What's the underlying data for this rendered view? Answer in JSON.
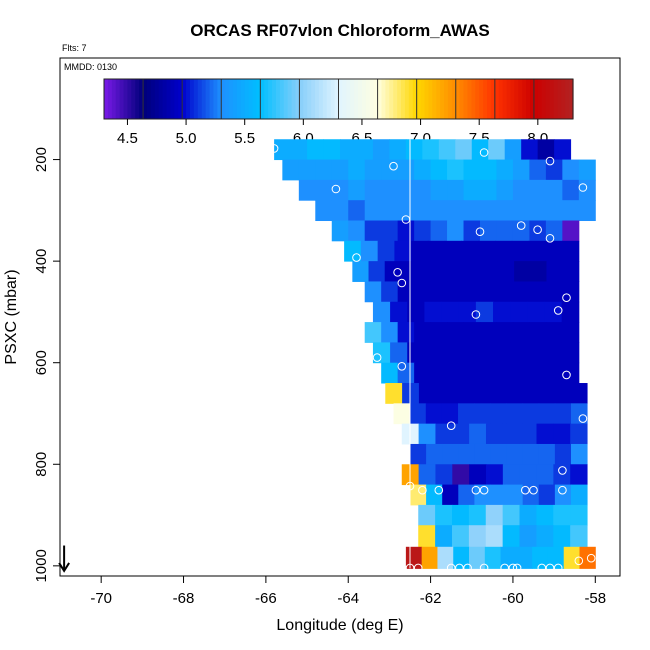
{
  "chart_data": {
    "type": "heatmap",
    "title": "ORCAS RF07vlon Chloroform_AWAS",
    "flts_label": "Flts: 7",
    "mmdd_label": "MMDD: 0130",
    "xlabel": "Longitude (deg E)",
    "ylabel": "PSXC (mbar)",
    "xlim": [
      -71.0,
      -57.4
    ],
    "ylim_top": 0,
    "ylim_bottom": 1020,
    "y_reversed": true,
    "x_ticks": [
      -70,
      -68,
      -66,
      -64,
      -62,
      -60,
      -58
    ],
    "x_tick_labels": [
      "-70",
      "-68",
      "-66",
      "-64",
      "-62",
      "-60",
      "-58"
    ],
    "y_ticks": [
      200,
      400,
      600,
      800,
      1000
    ],
    "y_tick_labels": [
      "200",
      "400",
      "600",
      "800",
      "1000"
    ],
    "colorbar": {
      "min": 4.3,
      "max": 8.3,
      "ticks": [
        4.5,
        5.0,
        5.5,
        6.0,
        6.5,
        7.0,
        7.5,
        8.0
      ],
      "tick_labels": [
        "4.5",
        "5.0",
        "5.5",
        "6.0",
        "6.5",
        "7.0",
        "7.5",
        "8.0"
      ],
      "colors": [
        "#7a1ae8",
        "#00007a",
        "#0000cc",
        "#1e90ff",
        "#00bfff",
        "#87cefa",
        "#e0f4ff",
        "#ffffe0",
        "#ffd700",
        "#ff8c00",
        "#ff3300",
        "#cc0000",
        "#b22222"
      ],
      "sections": 12
    },
    "heatmap_rows": [
      {
        "p": 180,
        "x0": -65.8,
        "x1": -58.6,
        "v": [
          5.5,
          5.5,
          5.6,
          5.6,
          5.5,
          5.5,
          5.4,
          5.5,
          5.6,
          5.7,
          5.8,
          5.9,
          5.6,
          5.9,
          5.4,
          5.0,
          4.8,
          5.0
        ]
      },
      {
        "p": 220,
        "x0": -65.6,
        "x1": -58.0,
        "v": [
          5.4,
          5.4,
          5.4,
          5.4,
          5.5,
          5.4,
          5.4,
          5.4,
          5.5,
          5.6,
          5.7,
          5.6,
          5.6,
          5.5,
          5.4,
          5.2,
          5.1,
          5.3,
          5.4
        ]
      },
      {
        "p": 260,
        "x0": -65.2,
        "x1": -58.0,
        "v": [
          5.3,
          5.3,
          5.3,
          5.4,
          5.3,
          5.3,
          5.3,
          5.3,
          5.4,
          5.4,
          5.5,
          5.5,
          5.4,
          5.3,
          5.3,
          5.3,
          5.2,
          5.3
        ]
      },
      {
        "p": 300,
        "x0": -64.8,
        "x1": -58.0,
        "v": [
          5.3,
          5.3,
          5.2,
          5.3,
          5.3,
          5.3,
          5.3,
          5.3,
          5.3,
          5.3,
          5.3,
          5.3,
          5.3,
          5.3,
          5.3,
          5.3,
          5.3
        ]
      },
      {
        "p": 340,
        "x0": -64.4,
        "x1": -58.4,
        "v": [
          5.4,
          5.3,
          5.1,
          5.1,
          5.0,
          5.1,
          5.2,
          5.3,
          5.1,
          5.2,
          5.2,
          5.2,
          5.1,
          5.2,
          4.4
        ]
      },
      {
        "p": 380,
        "x0": -64.1,
        "x1": -58.4,
        "v": [
          5.6,
          5.3,
          5.1,
          5.0,
          4.9,
          4.9,
          4.9,
          4.9,
          4.9,
          4.9,
          4.9,
          4.9,
          4.9,
          4.9
        ]
      },
      {
        "p": 420,
        "x0": -63.9,
        "x1": -58.4,
        "v": [
          5.4,
          5.1,
          4.9,
          4.9,
          4.9,
          4.9,
          4.9,
          4.9,
          4.9,
          4.9,
          4.8,
          4.8,
          4.9,
          4.9
        ]
      },
      {
        "p": 460,
        "x0": -63.6,
        "x1": -58.4,
        "v": [
          5.3,
          5.1,
          4.9,
          4.9,
          4.9,
          4.9,
          4.9,
          4.9,
          4.9,
          4.9,
          4.9,
          4.9,
          4.9
        ]
      },
      {
        "p": 500,
        "x0": -63.4,
        "x1": -58.4,
        "v": [
          5.3,
          5.0,
          4.9,
          5.0,
          5.0,
          5.0,
          5.1,
          5.0,
          5.0,
          5.0,
          5.0,
          4.9
        ]
      },
      {
        "p": 540,
        "x0": -63.6,
        "x1": -58.4,
        "v": [
          5.8,
          5.3,
          5.0,
          4.9,
          4.9,
          4.9,
          4.9,
          4.9,
          4.9,
          4.9,
          4.9,
          4.9,
          4.9
        ]
      },
      {
        "p": 580,
        "x0": -63.4,
        "x1": -58.4,
        "v": [
          5.7,
          5.2,
          4.9,
          4.9,
          4.9,
          4.9,
          4.9,
          4.9,
          4.9,
          4.9,
          4.9,
          4.9
        ]
      },
      {
        "p": 620,
        "x0": -63.2,
        "x1": -58.4,
        "v": [
          5.6,
          5.2,
          4.9,
          4.9,
          4.9,
          4.9,
          4.9,
          4.9,
          4.9,
          4.9,
          4.9,
          4.9
        ]
      },
      {
        "p": 660,
        "x0": -63.1,
        "x1": -58.2,
        "v": [
          6.9,
          5.1,
          4.9,
          4.9,
          4.9,
          4.9,
          4.9,
          4.9,
          4.9,
          4.9,
          4.9,
          4.9
        ]
      },
      {
        "p": 700,
        "x0": -62.9,
        "x1": -58.2,
        "v": [
          6.6,
          5.1,
          5.0,
          5.0,
          5.1,
          5.1,
          5.1,
          5.1,
          5.1,
          5.1,
          5.1,
          5.2
        ]
      },
      {
        "p": 740,
        "x0": -62.7,
        "x1": -58.2,
        "v": [
          6.3,
          5.3,
          5.1,
          5.1,
          5.2,
          5.1,
          5.1,
          5.1,
          5.0,
          5.0,
          5.1
        ]
      },
      {
        "p": 780,
        "x0": -62.5,
        "x1": -58.2,
        "v": [
          5.1,
          5.2,
          5.2,
          5.2,
          5.2,
          5.2,
          5.2,
          5.2,
          5.2,
          5.1,
          5.3
        ]
      },
      {
        "p": 820,
        "x0": -62.7,
        "x1": -58.2,
        "v": [
          7.2,
          5.2,
          5.1,
          4.5,
          4.9,
          5.0,
          5.2,
          5.2,
          5.2,
          5.1,
          5.0
        ]
      },
      {
        "p": 860,
        "x0": -62.5,
        "x1": -58.2,
        "v": [
          6.8,
          5.6,
          4.9,
          5.2,
          5.3,
          5.3,
          5.3,
          5.2,
          5.1,
          5.3,
          5.5
        ]
      },
      {
        "p": 900,
        "x0": -62.3,
        "x1": -58.2,
        "v": [
          5.9,
          5.7,
          5.6,
          5.7,
          6.0,
          5.8,
          5.5,
          5.6,
          5.7,
          5.7
        ]
      },
      {
        "p": 940,
        "x0": -62.3,
        "x1": -58.2,
        "v": [
          6.9,
          5.5,
          5.8,
          6.0,
          6.1,
          5.6,
          5.4,
          5.5,
          5.6,
          5.8
        ]
      },
      {
        "p": 985,
        "x0": -62.6,
        "x1": -58.0,
        "v": [
          8.2,
          7.2,
          6.1,
          5.6,
          5.9,
          5.7,
          5.5,
          5.5,
          5.6,
          5.6,
          6.9,
          7.4
        ]
      }
    ],
    "points": [
      [
        -65.8,
        178
      ],
      [
        -62.9,
        213
      ],
      [
        -60.7,
        186
      ],
      [
        -59.1,
        203
      ],
      [
        -64.3,
        258
      ],
      [
        -58.3,
        255
      ],
      [
        -62.6,
        318
      ],
      [
        -60.8,
        342
      ],
      [
        -59.8,
        330
      ],
      [
        -59.4,
        338
      ],
      [
        -59.1,
        355
      ],
      [
        -63.8,
        393
      ],
      [
        -62.8,
        422
      ],
      [
        -62.7,
        443
      ],
      [
        -60.9,
        505
      ],
      [
        -58.9,
        497
      ],
      [
        -58.7,
        472
      ],
      [
        -63.3,
        590
      ],
      [
        -62.7,
        607
      ],
      [
        -58.7,
        624
      ],
      [
        -61.5,
        724
      ],
      [
        -58.3,
        710
      ],
      [
        -62.9,
        789
      ],
      [
        -63.1,
        806
      ],
      [
        -58.8,
        812
      ],
      [
        -62.5,
        843
      ],
      [
        -62.2,
        851
      ],
      [
        -61.8,
        851
      ],
      [
        -60.9,
        851
      ],
      [
        -60.7,
        851
      ],
      [
        -59.7,
        851
      ],
      [
        -59.5,
        851
      ],
      [
        -58.8,
        851
      ],
      [
        -62.7,
        1004
      ],
      [
        -62.5,
        1004
      ],
      [
        -62.3,
        1004
      ],
      [
        -61.5,
        1004
      ],
      [
        -61.3,
        1004
      ],
      [
        -61.1,
        1004
      ],
      [
        -60.7,
        1004
      ],
      [
        -60.2,
        1004
      ],
      [
        -60.0,
        1004
      ],
      [
        -59.9,
        1004
      ],
      [
        -59.3,
        1004
      ],
      [
        -59.1,
        1004
      ],
      [
        -58.9,
        1004
      ],
      [
        -58.4,
        990
      ],
      [
        -58.1,
        985
      ]
    ],
    "vertical_line_x": -62.5,
    "arrow_marker": {
      "x": -70.9,
      "p_from": 960,
      "p_to": 1010
    }
  }
}
